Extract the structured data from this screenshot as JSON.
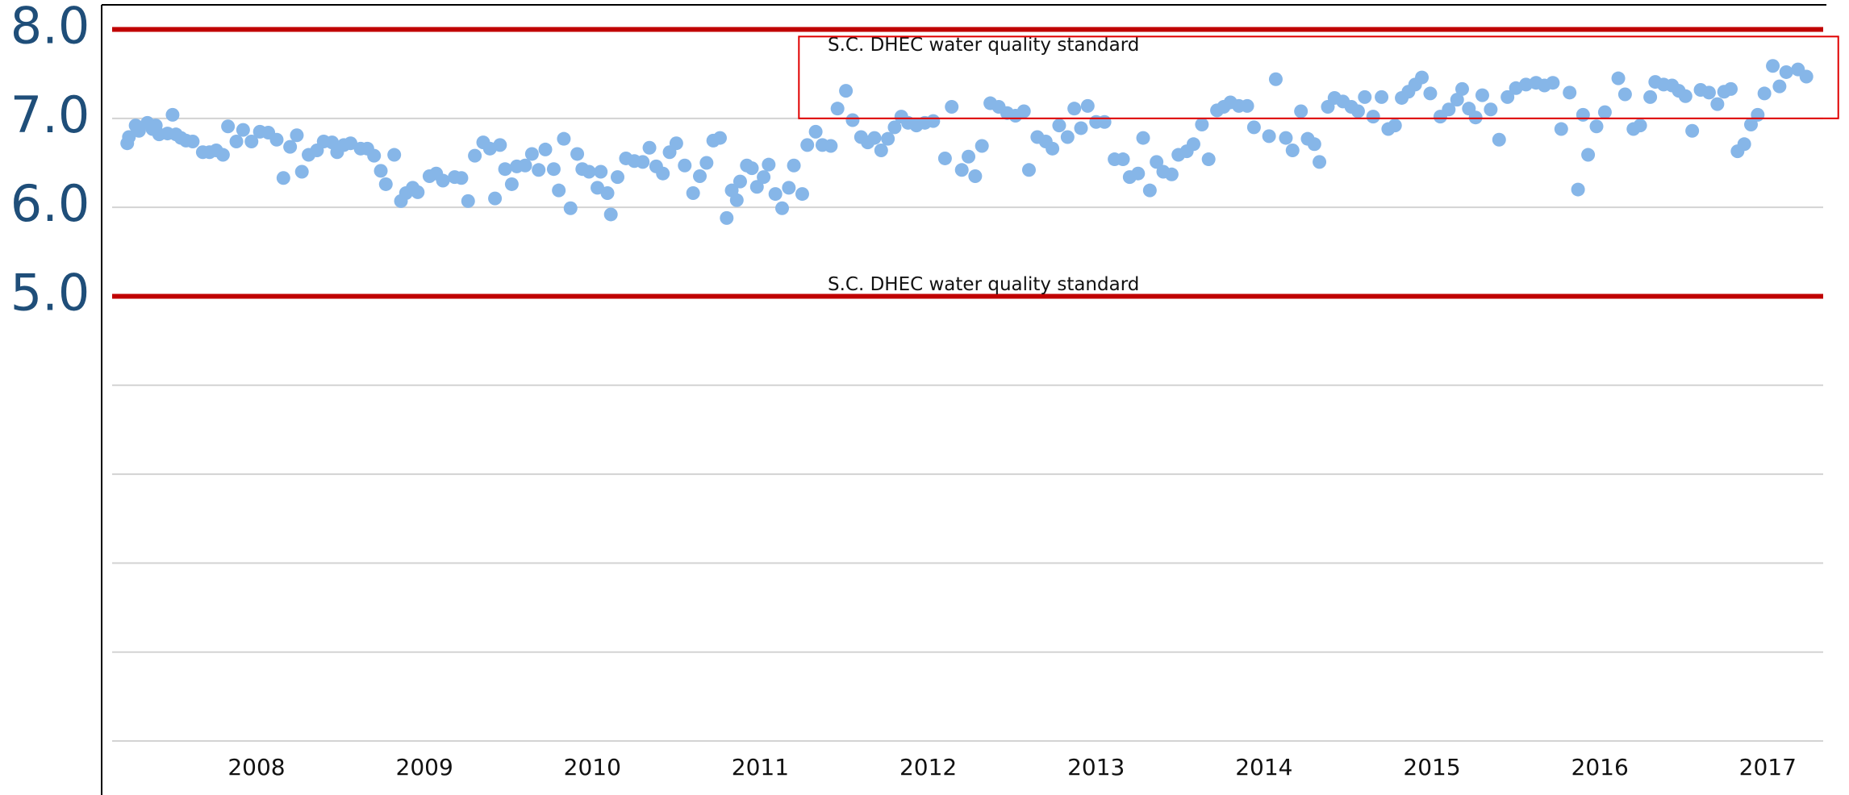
{
  "chart_data": {
    "type": "scatter",
    "color": "#86b6e8",
    "x": [
      2007.23,
      2007.24,
      2007.28,
      2007.3,
      2007.35,
      2007.38,
      2007.4,
      2007.42,
      2007.47,
      2007.5,
      2007.52,
      2007.55,
      2007.58,
      2007.62,
      2007.68,
      2007.72,
      2007.76,
      2007.8,
      2007.83,
      2007.88,
      2007.92,
      2007.97,
      2008.02,
      2008.07,
      2008.12,
      2008.16,
      2008.2,
      2008.24,
      2008.27,
      2008.31,
      2008.36,
      2008.4,
      2008.45,
      2008.48,
      2008.52,
      2008.56,
      2008.62,
      2008.66,
      2008.7,
      2008.74,
      2008.77,
      2008.82,
      2008.86,
      2008.89,
      2008.93,
      2008.96,
      2009.03,
      2009.07,
      2009.11,
      2009.18,
      2009.22,
      2009.26,
      2009.3,
      2009.35,
      2009.39,
      2009.42,
      2009.45,
      2009.48,
      2009.52,
      2009.55,
      2009.6,
      2009.64,
      2009.68,
      2009.72,
      2009.77,
      2009.8,
      2009.83,
      2009.87,
      2009.91,
      2009.94,
      2009.98,
      2010.03,
      2010.05,
      2010.09,
      2010.11,
      2010.15,
      2010.2,
      2010.25,
      2010.3,
      2010.34,
      2010.38,
      2010.42,
      2010.46,
      2010.5,
      2010.55,
      2010.6,
      2010.64,
      2010.68,
      2010.72,
      2010.76,
      2010.8,
      2010.83,
      2010.86,
      2010.88,
      2010.92,
      2010.95,
      2010.98,
      2011.02,
      2011.05,
      2011.09,
      2011.13,
      2011.17,
      2011.2,
      2011.25,
      2011.28,
      2011.33,
      2011.37,
      2011.42,
      2011.46,
      2011.51,
      2011.55,
      2011.6,
      2011.64,
      2011.68,
      2011.72,
      2011.76,
      2011.8,
      2011.84,
      2011.88,
      2011.93,
      2011.98,
      2012.03,
      2012.1,
      2012.14,
      2012.2,
      2012.24,
      2012.28,
      2012.32,
      2012.37,
      2012.42,
      2012.47,
      2012.52,
      2012.57,
      2012.6,
      2012.65,
      2012.7,
      2012.74,
      2012.78,
      2012.83,
      2012.87,
      2012.91,
      2012.95,
      2013.0,
      2013.05,
      2013.11,
      2013.16,
      2013.2,
      2013.25,
      2013.28,
      2013.32,
      2013.36,
      2013.4,
      2013.45,
      2013.49,
      2013.54,
      2013.58,
      2013.63,
      2013.67,
      2013.72,
      2013.76,
      2013.8,
      2013.85,
      2013.9,
      2013.94,
      2014.03,
      2014.07,
      2014.13,
      2014.17,
      2014.22,
      2014.26,
      2014.3,
      2014.33,
      2014.38,
      2014.42,
      2014.47,
      2014.52,
      2014.56,
      2014.6,
      2014.65,
      2014.7,
      2014.74,
      2014.78,
      2014.82,
      2014.86,
      2014.9,
      2014.94,
      2014.99,
      2015.05,
      2015.1,
      2015.15,
      2015.18,
      2015.22,
      2015.26,
      2015.3,
      2015.35,
      2015.4,
      2015.45,
      2015.5,
      2015.56,
      2015.62,
      2015.67,
      2015.72,
      2015.77,
      2015.82,
      2015.87,
      2015.9,
      2015.93,
      2015.98,
      2016.03,
      2016.11,
      2016.15,
      2016.2,
      2016.24,
      2016.3,
      2016.33,
      2016.38,
      2016.43,
      2016.47,
      2016.51,
      2016.55,
      2016.6,
      2016.65,
      2016.7,
      2016.74,
      2016.78,
      2016.82,
      2016.86,
      2016.9,
      2016.94,
      2016.98,
      2017.03,
      2017.07,
      2017.11,
      2017.18,
      2017.23
    ],
    "values": [
      6.72,
      6.79,
      6.92,
      6.86,
      6.95,
      6.88,
      6.92,
      6.82,
      6.83,
      7.04,
      6.82,
      6.78,
      6.75,
      6.74,
      6.62,
      6.62,
      6.64,
      6.59,
      6.91,
      6.74,
      6.87,
      6.74,
      6.85,
      6.84,
      6.76,
      6.33,
      6.68,
      6.81,
      6.4,
      6.59,
      6.64,
      6.74,
      6.73,
      6.62,
      6.7,
      6.72,
      6.66,
      6.66,
      6.58,
      6.41,
      6.26,
      6.59,
      6.07,
      6.16,
      6.22,
      6.17,
      6.35,
      6.38,
      6.3,
      6.34,
      6.33,
      6.07,
      6.58,
      6.73,
      6.66,
      6.1,
      6.7,
      6.43,
      6.26,
      6.46,
      6.47,
      6.6,
      6.42,
      6.65,
      6.43,
      6.19,
      6.77,
      5.99,
      6.6,
      6.43,
      6.4,
      6.22,
      6.4,
      6.16,
      5.92,
      6.34,
      6.55,
      6.52,
      6.51,
      6.67,
      6.46,
      6.38,
      6.62,
      6.72,
      6.47,
      6.16,
      6.35,
      6.5,
      6.75,
      6.78,
      5.88,
      6.19,
      6.08,
      6.29,
      6.47,
      6.44,
      6.23,
      6.34,
      6.48,
      6.15,
      5.99,
      6.22,
      6.47,
      6.15,
      6.7,
      6.85,
      6.7,
      6.69,
      7.11,
      7.31,
      6.98,
      6.79,
      6.73,
      6.78,
      6.64,
      6.77,
      6.9,
      7.02,
      6.95,
      6.92,
      6.95,
      6.97,
      6.55,
      7.13,
      6.42,
      6.57,
      6.35,
      6.69,
      7.17,
      7.13,
      7.06,
      7.03,
      7.08,
      6.42,
      6.79,
      6.74,
      6.66,
      6.92,
      6.79,
      7.11,
      6.89,
      7.14,
      6.96,
      6.96,
      6.54,
      6.54,
      6.34,
      6.38,
      6.78,
      6.19,
      6.51,
      6.4,
      6.37,
      6.59,
      6.63,
      6.71,
      6.93,
      6.54,
      7.09,
      7.13,
      7.18,
      7.14,
      7.14,
      6.9,
      6.8,
      7.44,
      6.78,
      6.64,
      7.08,
      6.77,
      6.71,
      6.51,
      7.13,
      7.23,
      7.19,
      7.13,
      7.08,
      7.24,
      7.02,
      7.24,
      6.88,
      6.92,
      7.23,
      7.3,
      7.38,
      7.46,
      7.28,
      7.02,
      7.1,
      7.21,
      7.33,
      7.11,
      7.01,
      7.26,
      7.1,
      6.76,
      7.24,
      7.34,
      7.38,
      7.4,
      7.37,
      7.4,
      6.88,
      7.29,
      6.2,
      7.04,
      6.59,
      6.91,
      7.07,
      7.45,
      7.27,
      6.88,
      6.92,
      7.24,
      7.41,
      7.38,
      7.37,
      7.31,
      7.25,
      6.86,
      7.32,
      7.29,
      7.16,
      7.3,
      7.33,
      6.63,
      6.71,
      6.93,
      7.04,
      7.28,
      7.59,
      7.36,
      7.52,
      7.55,
      7.47
    ],
    "xlim": [
      2007.14,
      2017.33
    ],
    "xticks": [
      2008,
      2009,
      2010,
      2011,
      2012,
      2013,
      2014,
      2015,
      2016,
      2017
    ],
    "ylim": [
      0,
      8
    ],
    "yticks": [
      0,
      {
        "value": 1,
        "label": null
      },
      {
        "value": 2,
        "label": null
      },
      {
        "value": 3,
        "label": null
      },
      {
        "value": 4,
        "label": null
      },
      {
        "value": 5,
        "label": "5.0"
      },
      {
        "value": 6,
        "label": "6.0"
      },
      {
        "value": 7,
        "label": "7.0"
      },
      {
        "value": 8,
        "label": "8.0"
      }
    ],
    "grid": true,
    "reference_lines": [
      {
        "value": 8,
        "label": "S.C. DHEC water quality standard",
        "color": "#c00000"
      },
      {
        "value": 5,
        "label": "S.C. DHEC water quality standard",
        "color": "#c00000"
      }
    ],
    "highlight_box": {
      "x": [
        2011.23,
        2017.42
      ],
      "y": [
        7.0,
        7.92
      ],
      "color": "#e00000"
    }
  }
}
